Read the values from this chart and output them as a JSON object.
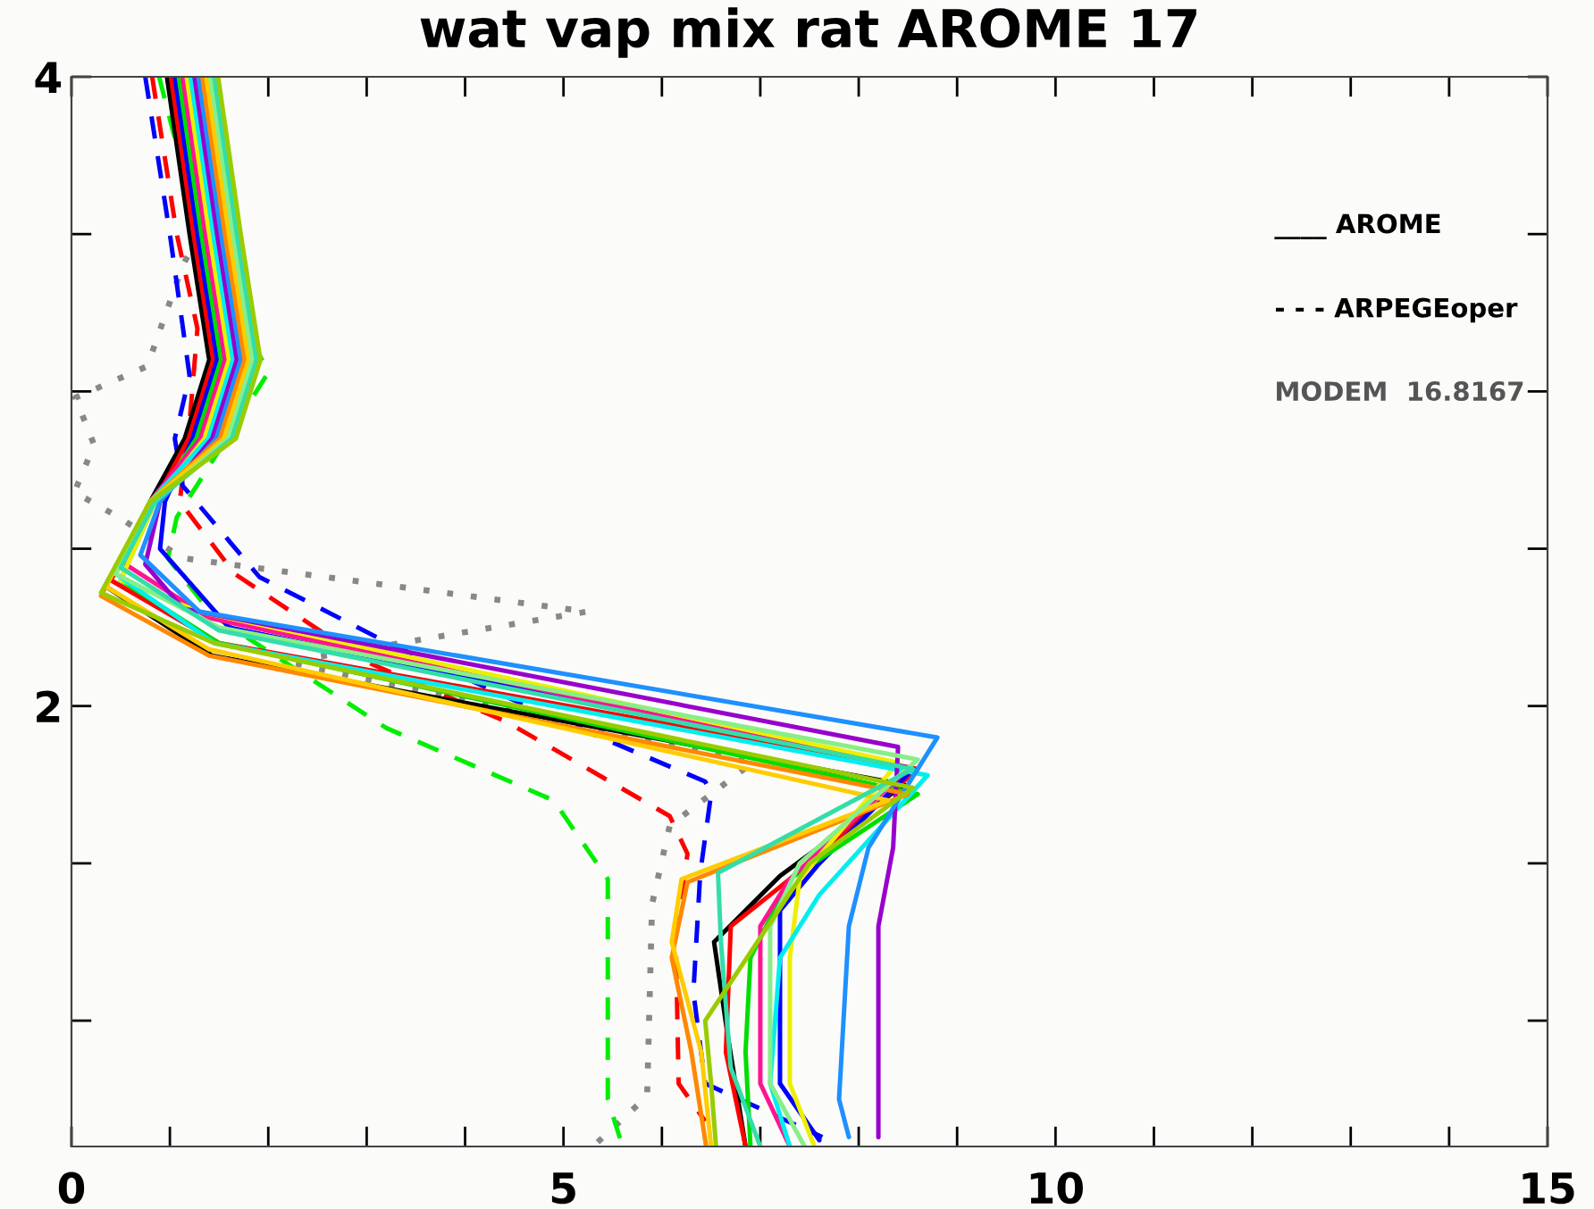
{
  "chart_data": {
    "type": "line",
    "title": "wat vap mix rat AROME 17",
    "xlim": [
      0,
      15
    ],
    "ylim": [
      0.6,
      4
    ],
    "xticks": [
      0,
      {
        "value": 1,
        "label": null
      },
      {
        "value": 2,
        "label": null
      },
      {
        "value": 3,
        "label": null
      },
      {
        "value": 4,
        "label": null
      },
      5,
      {
        "value": 6,
        "label": null
      },
      {
        "value": 7,
        "label": null
      },
      {
        "value": 8,
        "label": null
      },
      {
        "value": 9,
        "label": null
      },
      10,
      {
        "value": 11,
        "label": null
      },
      {
        "value": 12,
        "label": null
      },
      {
        "value": 13,
        "label": null
      },
      {
        "value": 14,
        "label": null
      },
      15
    ],
    "yticks": [
      {
        "value": 1,
        "label": null
      },
      {
        "value": 1.5,
        "label": null
      },
      2,
      {
        "value": 2.5,
        "label": null
      },
      {
        "value": 3,
        "label": null
      },
      {
        "value": 3.5,
        "label": null
      },
      4
    ],
    "grid": false,
    "marker": "none",
    "annotations": [
      "____ AROME",
      "- - - ARPEGEoper",
      "MODEM  16.8167"
    ],
    "series": [
      {
        "color": "#888888",
        "line_style": "dotted",
        "x": [
          1.12,
          1.43,
          1.49,
          1.13,
          0.77,
          0.04,
          0.23,
          0.03,
          0.48,
          1.13,
          5.24,
          2.2,
          6.92,
          6.08,
          5.9,
          5.85,
          5.3
        ],
        "values": [
          3.98,
          3.83,
          3.61,
          3.4,
          3.08,
          2.98,
          2.83,
          2.68,
          2.6,
          2.47,
          2.3,
          2.14,
          1.82,
          1.62,
          1.37,
          0.76,
          0.6
        ]
      },
      {
        "color": "#00ee00",
        "line_style": "dashed",
        "x": [
          0.89,
          1.3,
          2.0,
          1.07,
          0.98,
          1.43,
          3.2,
          4.9,
          5.45,
          5.45,
          5.6
        ],
        "values": [
          4.0,
          3.5,
          3.06,
          2.6,
          2.47,
          2.29,
          1.93,
          1.7,
          1.45,
          0.75,
          0.6
        ]
      },
      {
        "color": "#ff0000",
        "line_style": "dashed",
        "x": [
          0.82,
          1.07,
          1.28,
          1.2,
          1.1,
          1.66,
          3.0,
          4.42,
          6.08,
          6.26,
          6.14,
          6.17,
          6.44
        ],
        "values": [
          4.0,
          3.5,
          3.2,
          2.9,
          2.65,
          2.42,
          2.14,
          1.95,
          1.65,
          1.53,
          1.28,
          0.8,
          0.68
        ]
      },
      {
        "color": "#0000ff",
        "line_style": "dashed",
        "x": [
          0.75,
          1.0,
          1.2,
          1.05,
          1.13,
          1.91,
          3.22,
          4.7,
          6.44,
          6.5,
          6.39,
          6.32,
          6.44,
          7.63
        ],
        "values": [
          4.0,
          3.5,
          3.05,
          2.85,
          2.7,
          2.41,
          2.2,
          1.99,
          1.76,
          1.72,
          1.47,
          1.09,
          0.8,
          0.63
        ]
      },
      {
        "color": "#000000",
        "x": [
          0.97,
          1.2,
          1.4,
          1.15,
          0.8,
          0.35,
          1.43,
          8.46,
          7.2,
          6.53,
          6.67,
          6.85
        ],
        "values": [
          4.0,
          3.5,
          3.1,
          2.85,
          2.65,
          2.38,
          2.16,
          1.75,
          1.46,
          1.25,
          0.95,
          0.6
        ]
      },
      {
        "color": "#ff0000",
        "x": [
          1.01,
          1.24,
          1.44,
          1.19,
          0.85,
          0.4,
          1.5,
          8.6,
          7.5,
          6.7,
          6.65,
          6.85
        ],
        "values": [
          4.0,
          3.5,
          3.1,
          2.85,
          2.65,
          2.4,
          2.2,
          1.8,
          1.5,
          1.3,
          0.9,
          0.6
        ]
      },
      {
        "color": "#0000ff",
        "x": [
          1.05,
          1.28,
          1.48,
          1.23,
          0.95,
          0.9,
          1.6,
          8.55,
          7.6,
          7.2,
          7.2,
          7.6
        ],
        "values": [
          4.0,
          3.5,
          3.1,
          2.85,
          2.65,
          2.5,
          2.25,
          1.8,
          1.5,
          1.35,
          0.8,
          0.62
        ]
      },
      {
        "color": "#00dd00",
        "x": [
          1.09,
          1.32,
          1.52,
          1.27,
          0.85,
          0.5,
          1.5,
          8.6,
          7.3,
          6.9,
          6.85,
          6.9
        ],
        "values": [
          4.0,
          3.5,
          3.1,
          2.85,
          2.65,
          2.4,
          2.2,
          1.72,
          1.45,
          1.2,
          0.9,
          0.6
        ]
      },
      {
        "color": "#ff1493",
        "x": [
          1.13,
          1.36,
          1.56,
          1.31,
          0.8,
          0.55,
          1.4,
          8.5,
          7.3,
          7.0,
          7.0,
          7.3
        ],
        "values": [
          4.0,
          3.5,
          3.1,
          2.85,
          2.65,
          2.45,
          2.28,
          1.8,
          1.45,
          1.3,
          0.8,
          0.6
        ]
      },
      {
        "color": "#eeee00",
        "x": [
          1.17,
          1.4,
          1.6,
          1.35,
          0.85,
          0.5,
          1.3,
          8.4,
          7.4,
          7.3,
          7.3,
          7.55
        ],
        "values": [
          4.0,
          3.5,
          3.1,
          2.85,
          2.65,
          2.4,
          2.3,
          1.82,
          1.45,
          1.2,
          0.8,
          0.6
        ]
      },
      {
        "color": "#00eeee",
        "x": [
          1.21,
          1.44,
          1.64,
          1.39,
          0.8,
          0.45,
          1.45,
          8.7,
          7.6,
          7.2,
          7.1,
          7.3
        ],
        "values": [
          4.0,
          3.5,
          3.1,
          2.85,
          2.65,
          2.42,
          2.2,
          1.78,
          1.4,
          1.2,
          0.8,
          0.6
        ]
      },
      {
        "color": "#9900cc",
        "x": [
          1.25,
          1.48,
          1.68,
          1.43,
          0.9,
          0.75,
          1.13,
          8.4,
          8.35,
          8.2,
          8.2,
          8.2
        ],
        "values": [
          4.0,
          3.5,
          3.1,
          2.85,
          2.65,
          2.45,
          2.31,
          1.87,
          1.55,
          1.3,
          0.75,
          0.63
        ]
      },
      {
        "color": "#1e90ff",
        "x": [
          1.29,
          1.52,
          1.72,
          1.47,
          0.9,
          0.7,
          1.3,
          8.8,
          8.1,
          7.9,
          7.8,
          7.9
        ],
        "values": [
          4.0,
          3.5,
          3.1,
          2.85,
          2.65,
          2.48,
          2.3,
          1.9,
          1.55,
          1.3,
          0.75,
          0.63
        ]
      },
      {
        "color": "#ff8800",
        "x": [
          1.33,
          1.56,
          1.76,
          1.51,
          0.8,
          0.3,
          1.4,
          8.5,
          6.26,
          6.1,
          6.3,
          6.45
        ],
        "values": [
          4.0,
          3.5,
          3.1,
          2.85,
          2.65,
          2.35,
          2.16,
          1.72,
          1.44,
          1.2,
          0.9,
          0.6
        ]
      },
      {
        "color": "#ffcc00",
        "x": [
          1.37,
          1.6,
          1.8,
          1.55,
          0.8,
          0.35,
          1.4,
          8.3,
          6.2,
          6.1,
          6.4,
          6.5
        ],
        "values": [
          4.0,
          3.5,
          3.1,
          2.85,
          2.65,
          2.38,
          2.18,
          1.7,
          1.45,
          1.25,
          0.9,
          0.6
        ]
      },
      {
        "color": "#88ee88",
        "x": [
          1.41,
          1.64,
          1.84,
          1.59,
          0.85,
          0.45,
          1.5,
          8.6,
          7.4,
          7.1,
          7.1,
          7.45
        ],
        "values": [
          4.0,
          3.5,
          3.1,
          2.85,
          2.65,
          2.42,
          2.25,
          1.83,
          1.5,
          1.3,
          0.8,
          0.6
        ]
      },
      {
        "color": "#33ddaa",
        "x": [
          1.45,
          1.68,
          1.88,
          1.63,
          0.85,
          0.5,
          1.5,
          8.55,
          6.57,
          6.6,
          6.7,
          7.0
        ],
        "values": [
          4.0,
          3.5,
          3.1,
          2.85,
          2.65,
          2.44,
          2.24,
          1.8,
          1.47,
          1.25,
          0.85,
          0.6
        ]
      },
      {
        "color": "#99cc00",
        "x": [
          1.49,
          1.72,
          1.92,
          1.67,
          0.8,
          0.3,
          1.45,
          8.55,
          7.5,
          6.44,
          6.5,
          6.55
        ],
        "values": [
          4.0,
          3.5,
          3.1,
          2.85,
          2.65,
          2.36,
          2.2,
          1.74,
          1.5,
          1.0,
          0.8,
          0.6
        ]
      }
    ]
  }
}
